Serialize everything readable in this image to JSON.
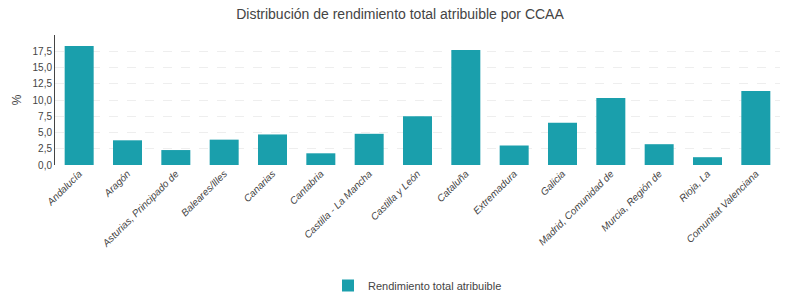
{
  "chart_data": {
    "type": "bar",
    "title": "Distribución de rendimiento total atribuible por CCAA",
    "ylabel": "%",
    "categories": [
      "Andalucía",
      "Aragón",
      "Asturias, Principado de",
      "Baleares/Illes",
      "Canarias",
      "Cantabria",
      "Castilla - La Mancha",
      "Castilla y León",
      "Cataluña",
      "Extremadura",
      "Galicia",
      "Madrid, Comunidad de",
      "Murcia, Región de",
      "Rioja, La",
      "Comunitat Valenciana"
    ],
    "series": [
      {
        "name": "Rendimiento total atribuible",
        "color": "#1a9fac",
        "values": [
          18.3,
          3.8,
          2.3,
          3.9,
          4.7,
          1.8,
          4.8,
          7.5,
          17.7,
          3.0,
          6.5,
          10.3,
          3.2,
          1.2,
          11.4
        ]
      }
    ],
    "ylim": [
      0,
      20
    ],
    "yticks": [
      {
        "value": 0.0,
        "label": "0,0"
      },
      {
        "value": 2.5,
        "label": "2,5"
      },
      {
        "value": 5.0,
        "label": "5,0"
      },
      {
        "value": 7.5,
        "label": "7,5"
      },
      {
        "value": 10.0,
        "label": "10,0"
      },
      {
        "value": 12.5,
        "label": "12,5"
      },
      {
        "value": 15.0,
        "label": "15,0"
      },
      {
        "value": 17.5,
        "label": "17,5"
      }
    ],
    "grid": true,
    "legend": "bottom"
  }
}
